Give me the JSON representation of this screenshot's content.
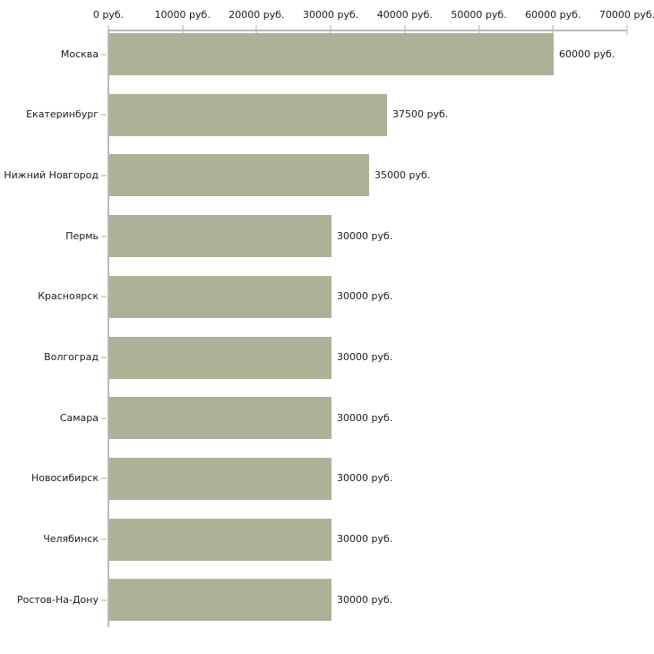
{
  "chart_data": {
    "type": "bar",
    "orientation": "horizontal",
    "title": "",
    "xlabel": "",
    "ylabel": "",
    "unit": "руб.",
    "categories": [
      "Москва",
      "Екатеринбург",
      "Нижний Новгород",
      "Пермь",
      "Красноярск",
      "Волгоград",
      "Самара",
      "Новосибирск",
      "Челябинск",
      "Ростов-На-Дону"
    ],
    "values": [
      60000,
      37500,
      35000,
      30000,
      30000,
      30000,
      30000,
      30000,
      30000,
      30000
    ],
    "value_labels": [
      "60000 руб.",
      "37500 руб.",
      "35000 руб.",
      "30000 руб.",
      "30000 руб.",
      "30000 руб.",
      "30000 руб.",
      "30000 руб.",
      "30000 руб.",
      "30000 руб."
    ],
    "x_ticks": [
      0,
      10000,
      20000,
      30000,
      40000,
      50000,
      60000,
      70000
    ],
    "x_tick_labels": [
      "0 руб.",
      "10000 руб.",
      "20000 руб.",
      "30000 руб.",
      "40000 руб.",
      "50000 руб.",
      "60000 руб.",
      "70000 руб."
    ],
    "xlim": [
      0,
      70000
    ],
    "grid": "off",
    "legend": "none",
    "axis_position": "top",
    "colors": {
      "bar": "#acb298",
      "axis_line": "#b9b9b9",
      "tick_mark": "#d8dab4",
      "text": "#1a1a1a",
      "background": "#ffffff"
    }
  }
}
